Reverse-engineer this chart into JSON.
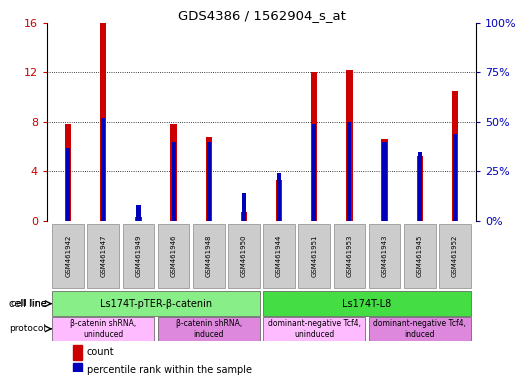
{
  "title": "GDS4386 / 1562904_s_at",
  "samples": [
    "GSM461942",
    "GSM461947",
    "GSM461949",
    "GSM461946",
    "GSM461948",
    "GSM461950",
    "GSM461944",
    "GSM461951",
    "GSM461953",
    "GSM461943",
    "GSM461945",
    "GSM461952"
  ],
  "counts": [
    7.8,
    16.0,
    0.3,
    7.8,
    6.8,
    0.7,
    3.3,
    12.0,
    12.2,
    6.6,
    5.2,
    10.5
  ],
  "percentiles": [
    37,
    52,
    8,
    40,
    40,
    14,
    24,
    49,
    50,
    40,
    35,
    44
  ],
  "ylim_left": [
    0,
    16
  ],
  "ylim_right": [
    0,
    100
  ],
  "yticks_left": [
    0,
    4,
    8,
    12,
    16
  ],
  "yticks_right": [
    0,
    25,
    50,
    75,
    100
  ],
  "ytick_labels_left": [
    "0",
    "4",
    "8",
    "12",
    "16"
  ],
  "ytick_labels_right": [
    "0%",
    "25%",
    "50%",
    "75%",
    "100%"
  ],
  "bar_color_red": "#cc0000",
  "bar_color_blue": "#0000bb",
  "bg_color": "#ffffff",
  "cell_line_groups": [
    {
      "label": "Ls174T-pTER-β-catenin",
      "start": 0,
      "end": 5,
      "color": "#88ee88"
    },
    {
      "label": "Ls174T-L8",
      "start": 6,
      "end": 11,
      "color": "#44dd44"
    }
  ],
  "protocol_groups": [
    {
      "label": "β-catenin shRNA,\nuninduced",
      "start": 0,
      "end": 2,
      "color": "#ffbbff"
    },
    {
      "label": "β-catenin shRNA,\ninduced",
      "start": 3,
      "end": 5,
      "color": "#dd88dd"
    },
    {
      "label": "dominant-negative Tcf4,\nuninduced",
      "start": 6,
      "end": 8,
      "color": "#ffbbff"
    },
    {
      "label": "dominant-negative Tcf4,\ninduced",
      "start": 9,
      "end": 11,
      "color": "#dd88dd"
    }
  ],
  "legend_count_label": "count",
  "legend_percentile_label": "percentile rank within the sample",
  "cell_line_label": "cell line",
  "protocol_label": "protocol",
  "left_axis_color": "#cc0000",
  "right_axis_color": "#0000bb",
  "red_bar_width": 0.18,
  "blue_bar_width": 0.12,
  "grid_ticks": [
    0,
    4,
    8,
    12
  ]
}
